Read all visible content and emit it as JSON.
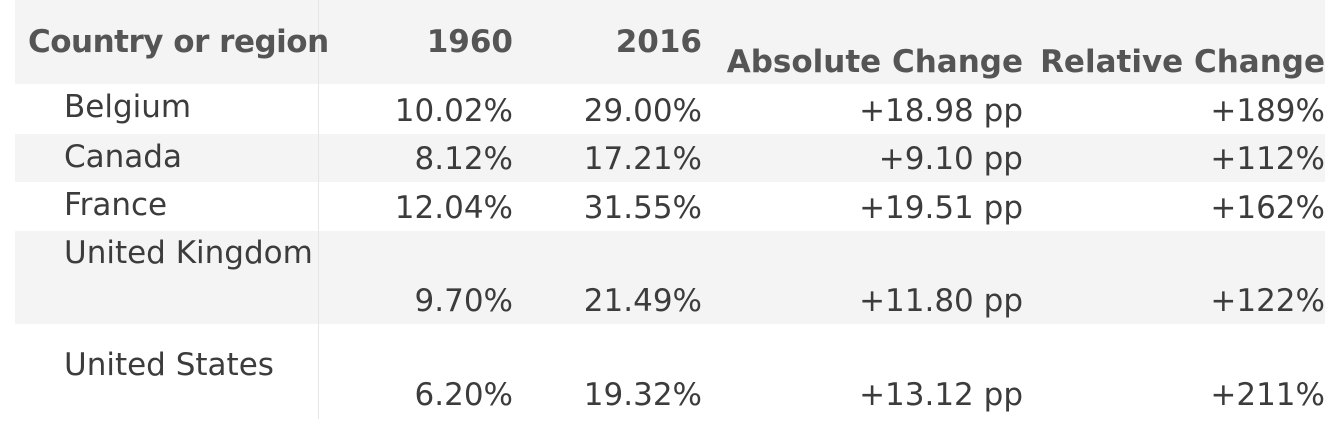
{
  "table": {
    "headers": {
      "country": "Country or region",
      "y1960": "1960",
      "y2016": "2016",
      "absolute": "Absolute Change",
      "relative": "Relative Change"
    },
    "rows": [
      {
        "country": "Belgium",
        "y1960": "10.02%",
        "y2016": "29.00%",
        "absolute": "+18.98 pp",
        "relative": "+189%"
      },
      {
        "country": "Canada",
        "y1960": "8.12%",
        "y2016": "17.21%",
        "absolute": "+9.10 pp",
        "relative": "+112%"
      },
      {
        "country": "France",
        "y1960": "12.04%",
        "y2016": "31.55%",
        "absolute": "+19.51 pp",
        "relative": "+162%"
      },
      {
        "country": "United Kingdom",
        "y1960": "9.70%",
        "y2016": "21.49%",
        "absolute": "+11.80 pp",
        "relative": "+122%"
      },
      {
        "country": "United States",
        "y1960": "6.20%",
        "y2016": "19.32%",
        "absolute": "+13.12 pp",
        "relative": "+211%"
      }
    ]
  },
  "colors": {
    "header_bg": "#f4f4f4",
    "stripe_bg": "#f4f4f4",
    "text": "#3c3c3c"
  }
}
